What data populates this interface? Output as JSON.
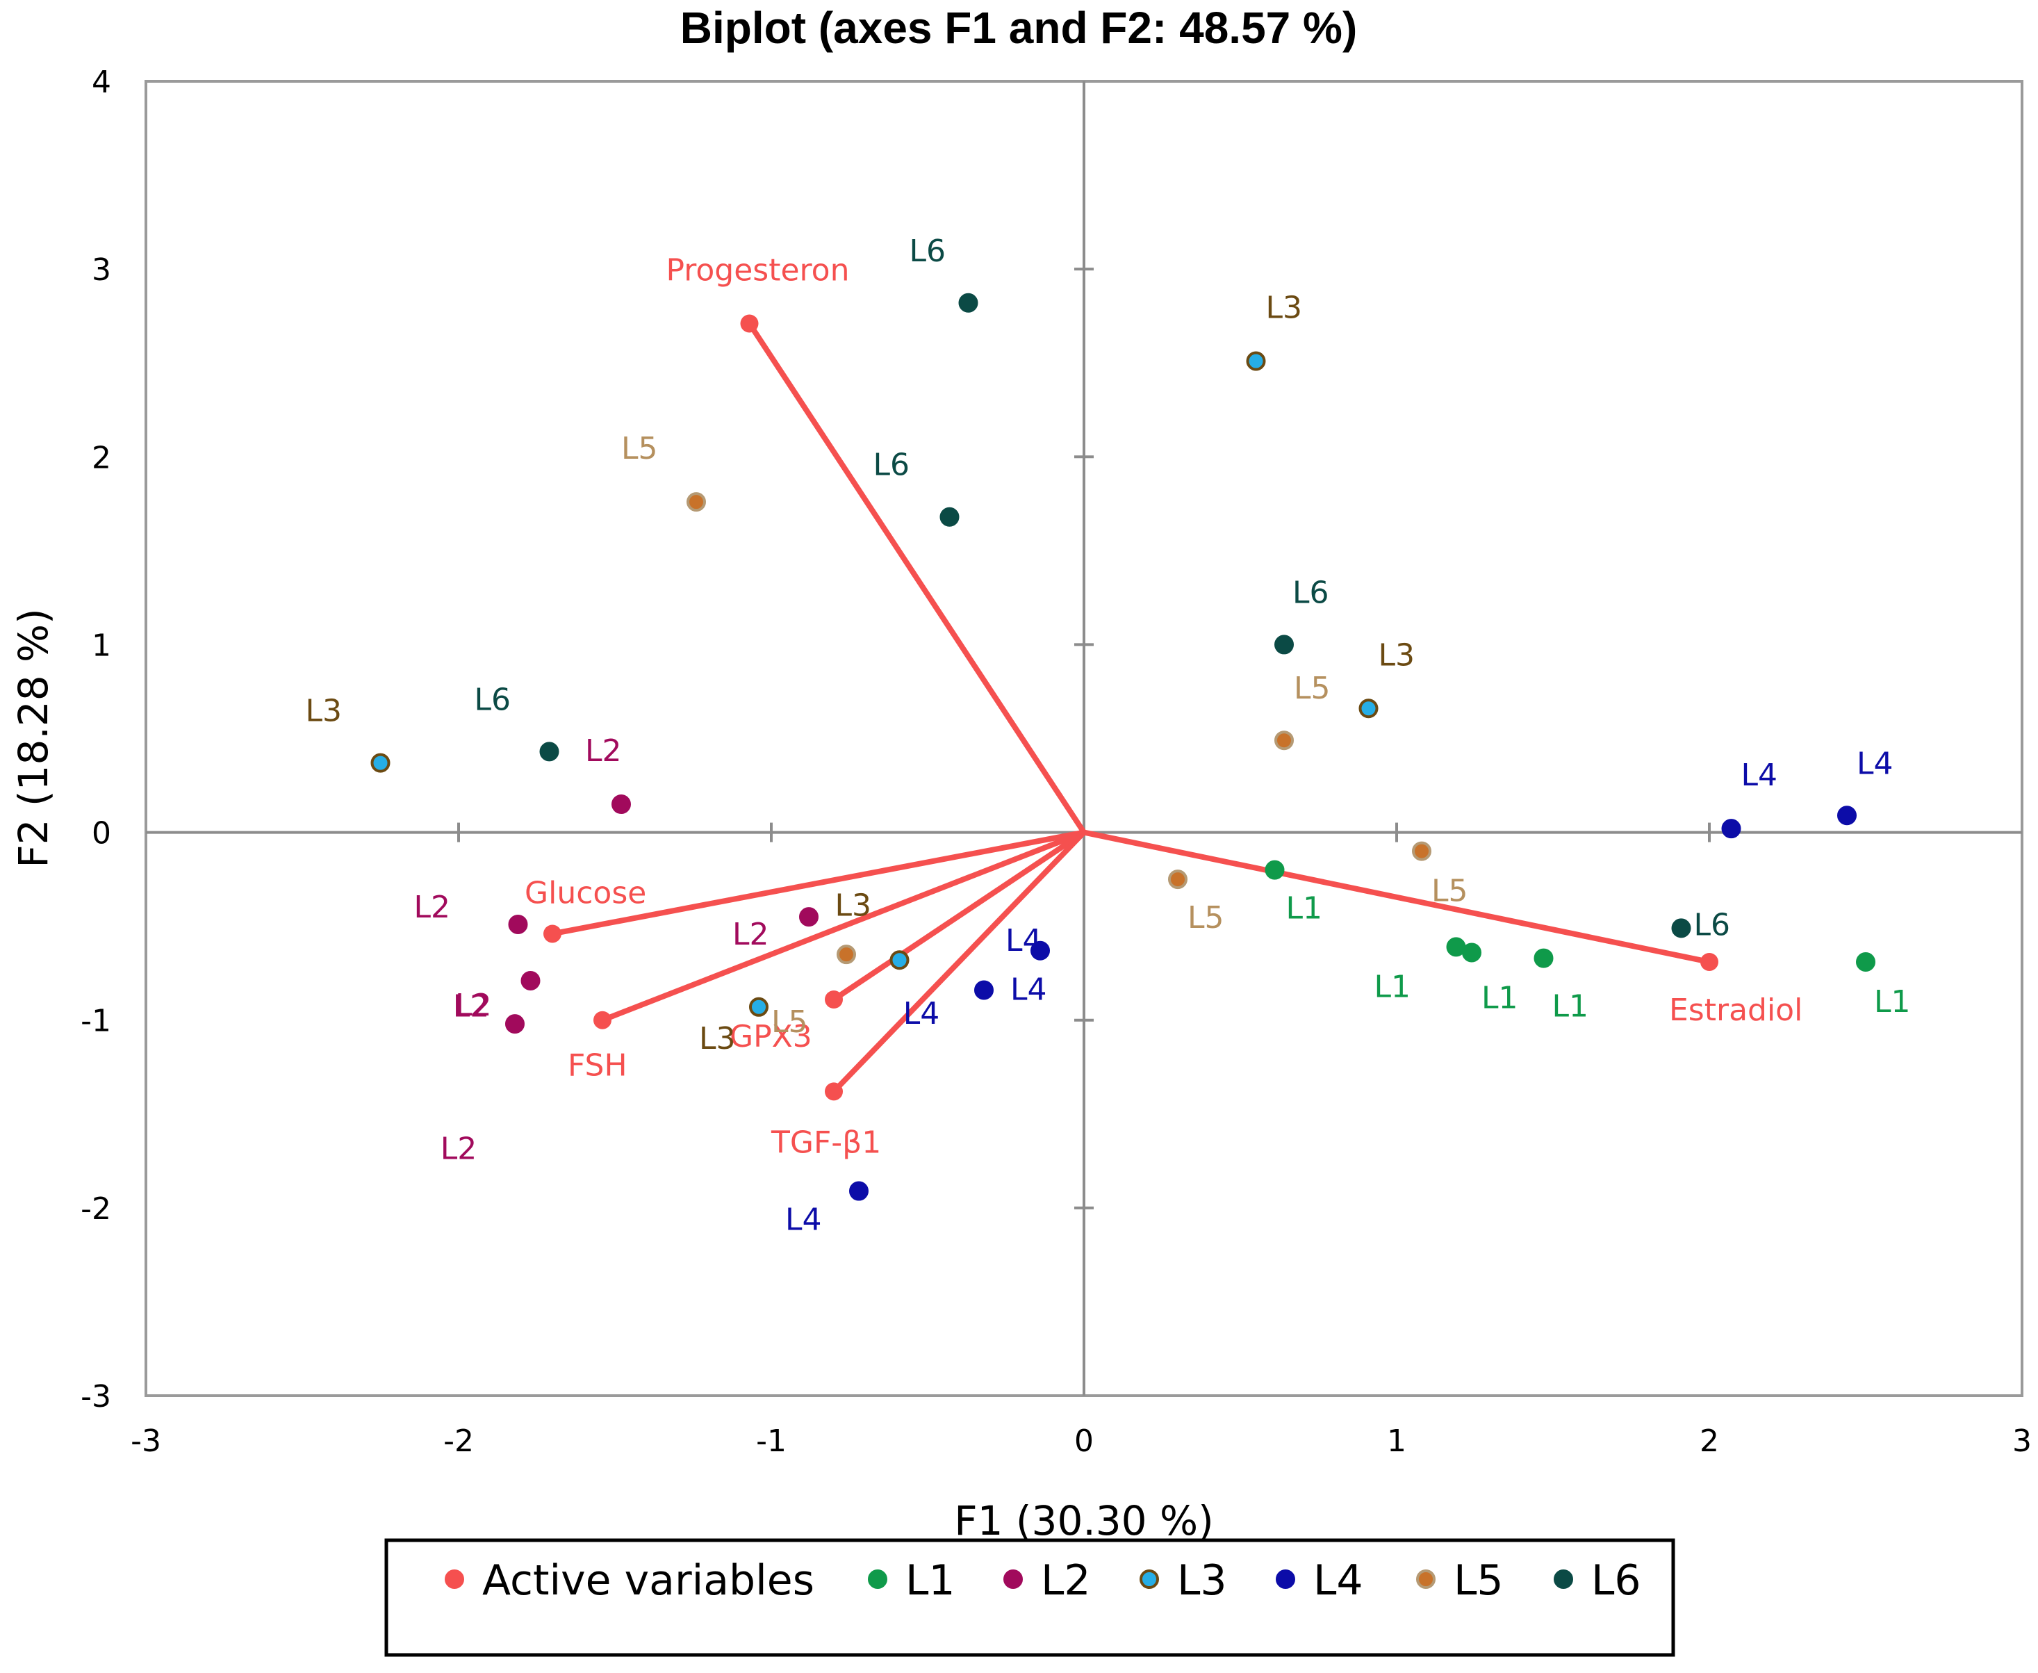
{
  "chart_data": {
    "type": "scatter",
    "title": "Biplot (axes F1 and F2: 48.57 %)",
    "xlabel": "F1 (30.30 %)",
    "ylabel": "F2 (18.28 %)",
    "xlim": [
      -3,
      3
    ],
    "ylim": [
      -3,
      4
    ],
    "x_ticks": [
      -3,
      -2,
      -1,
      0,
      1,
      2,
      3
    ],
    "y_ticks": [
      -3,
      -2,
      -1,
      0,
      1,
      2,
      3,
      4
    ],
    "grid": false,
    "legend_position": "bottom",
    "legend": [
      "Active variables",
      "L1",
      "L2",
      "L3",
      "L4",
      "L5",
      "L6"
    ],
    "styles": {
      "Active variables": {
        "fill": "#f5504f",
        "stroke": "#f5504f",
        "text": "#f5504f"
      },
      "L1": {
        "fill": "#0f9a4a",
        "stroke": "#0f9a4a",
        "text": "#0f9a4a"
      },
      "L2": {
        "fill": "#a10a5c",
        "stroke": "#a10a5c",
        "text": "#a10a5c"
      },
      "L3": {
        "fill": "#26aee6",
        "stroke": "#6b4a12",
        "text": "#6b4a12"
      },
      "L4": {
        "fill": "#0c0ca8",
        "stroke": "#0c0ca8",
        "text": "#0c0ca8"
      },
      "L5": {
        "fill": "#c8722a",
        "stroke": "#b59a74",
        "text": "#b5905e"
      },
      "L6": {
        "fill": "#0b4a45",
        "stroke": "#0b4a45",
        "text": "#0b4a45"
      }
    },
    "active_variables": [
      {
        "name": "Progesteron",
        "x": -1.07,
        "y": 2.71
      },
      {
        "name": "Glucose",
        "x": -1.7,
        "y": -0.54
      },
      {
        "name": "FSH",
        "x": -1.54,
        "y": -1.0
      },
      {
        "name": "GPX3",
        "x": -0.8,
        "y": -0.89
      },
      {
        "name": "TGF-β1",
        "x": -0.8,
        "y": -1.38
      },
      {
        "name": "Estradiol",
        "x": 2.0,
        "y": -0.69
      }
    ],
    "observations": [
      {
        "group": "L1",
        "x": 0.61,
        "y": -0.2
      },
      {
        "group": "L1",
        "x": 1.19,
        "y": -0.61
      },
      {
        "group": "L1",
        "x": 1.24,
        "y": -0.64
      },
      {
        "group": "L1",
        "x": 1.47,
        "y": -0.67
      },
      {
        "group": "L1",
        "x": 2.5,
        "y": -0.69
      },
      {
        "group": "L2",
        "x": -1.48,
        "y": 0.15
      },
      {
        "group": "L2",
        "x": -1.81,
        "y": -0.49
      },
      {
        "group": "L2",
        "x": -0.88,
        "y": -0.45
      },
      {
        "group": "L2",
        "x": -1.77,
        "y": -0.79
      },
      {
        "group": "L2",
        "x": -1.82,
        "y": -1.02
      },
      {
        "group": "L3",
        "x": 0.55,
        "y": 2.51
      },
      {
        "group": "L3",
        "x": 0.91,
        "y": 0.66
      },
      {
        "group": "L3",
        "x": -2.25,
        "y": 0.37
      },
      {
        "group": "L3",
        "x": -0.59,
        "y": -0.68
      },
      {
        "group": "L3",
        "x": -1.04,
        "y": -0.93
      },
      {
        "group": "L4",
        "x": 2.07,
        "y": 0.02
      },
      {
        "group": "L4",
        "x": 2.44,
        "y": 0.09
      },
      {
        "group": "L4",
        "x": -0.14,
        "y": -0.63
      },
      {
        "group": "L4",
        "x": -0.32,
        "y": -0.84
      },
      {
        "group": "L4",
        "x": -0.72,
        "y": -1.91
      },
      {
        "group": "L5",
        "x": -1.24,
        "y": 1.76
      },
      {
        "group": "L5",
        "x": 0.64,
        "y": 0.49
      },
      {
        "group": "L5",
        "x": 1.08,
        "y": -0.1
      },
      {
        "group": "L5",
        "x": 0.3,
        "y": -0.25
      },
      {
        "group": "L5",
        "x": -0.76,
        "y": -0.65
      },
      {
        "group": "L6",
        "x": -0.37,
        "y": 2.82
      },
      {
        "group": "L6",
        "x": -0.43,
        "y": 1.68
      },
      {
        "group": "L6",
        "x": 0.64,
        "y": 1.0
      },
      {
        "group": "L6",
        "x": -1.71,
        "y": 0.43
      },
      {
        "group": "L6",
        "x": 1.91,
        "y": -0.51
      }
    ]
  }
}
